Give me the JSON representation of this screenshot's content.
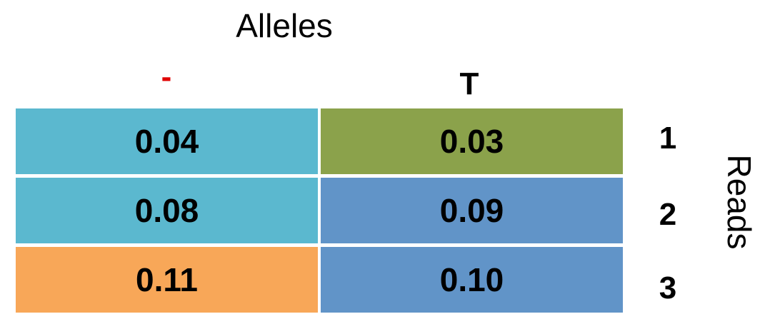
{
  "header": {
    "title": "Alleles",
    "columns": [
      "-",
      "T"
    ]
  },
  "side_label": "Reads",
  "rows": [
    {
      "label": "1",
      "cells": [
        {
          "value": "0.04",
          "color": "#5BB8CF"
        },
        {
          "value": "0.03",
          "color": "#8BA24B"
        }
      ]
    },
    {
      "label": "2",
      "cells": [
        {
          "value": "0.08",
          "color": "#5BB8CF"
        },
        {
          "value": "0.09",
          "color": "#6194C8"
        }
      ]
    },
    {
      "label": "3",
      "cells": [
        {
          "value": "0.11",
          "color": "#F8A758"
        },
        {
          "value": "0.10",
          "color": "#6194C8"
        }
      ]
    }
  ]
}
